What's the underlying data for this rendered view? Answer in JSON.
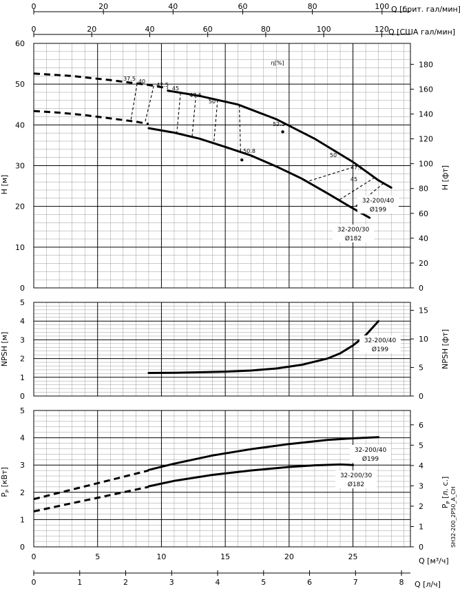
{
  "chart_data": [
    {
      "panel": "head",
      "type": "line",
      "x_axis": {
        "label": "Q [м³/ч]",
        "range": [
          0,
          29.5
        ]
      },
      "y_axis": {
        "label": "H [м]",
        "range": [
          0,
          60
        ],
        "ticks": [
          0,
          10,
          20,
          30,
          40,
          50,
          60
        ]
      },
      "y2_axis": {
        "label": "H [фт]",
        "ticks": [
          0,
          20,
          40,
          60,
          80,
          100,
          120,
          140,
          160,
          180
        ]
      },
      "top_axes": [
        {
          "label": "Q [брит. гал/мин]",
          "ticks": [
            0,
            20,
            40,
            60,
            80,
            100
          ]
        },
        {
          "label": "Q [США гал/мин]",
          "ticks": [
            0,
            20,
            40,
            60,
            80,
            100,
            120
          ]
        }
      ],
      "efficiency_label": "η[%]",
      "series": [
        {
          "name": "32-200/40",
          "sublabel": "Ø199",
          "dashed": [
            [
              0,
              52.6
            ],
            [
              3,
              52
            ],
            [
              6,
              51
            ],
            [
              9,
              49.8
            ],
            [
              10.5,
              49
            ]
          ],
          "solid": [
            [
              10.5,
              48.4
            ],
            [
              13,
              47.1
            ],
            [
              16,
              45
            ],
            [
              19,
              41.4
            ],
            [
              22,
              36.6
            ],
            [
              25,
              30.9
            ],
            [
              27,
              26.4
            ],
            [
              28,
              24.6
            ]
          ]
        },
        {
          "name": "32-200/30",
          "sublabel": "Ø182",
          "dashed": [
            [
              0,
              43.4
            ],
            [
              2,
              43
            ],
            [
              4,
              42.4
            ],
            [
              6,
              41.6
            ],
            [
              8,
              40.8
            ],
            [
              9,
              40.2
            ]
          ],
          "solid": [
            [
              9,
              39.2
            ],
            [
              11,
              38.1
            ],
            [
              13,
              36.6
            ],
            [
              15,
              34.6
            ],
            [
              17,
              32.5
            ],
            [
              19,
              29.8
            ],
            [
              21,
              26.8
            ],
            [
              23,
              23.2
            ],
            [
              25,
              19.5
            ],
            [
              26.3,
              17.2
            ]
          ]
        }
      ],
      "efficiency_lines": [
        {
          "label": "37.5",
          "x": [
            8.1,
            7.6
          ]
        },
        {
          "label": "40",
          "x": [
            9.4,
            8.7
          ]
        },
        {
          "label": "42.5",
          "x": [
            11.5,
            11.2
          ]
        },
        {
          "label": "45",
          "x": [
            12.7,
            12.4
          ]
        },
        {
          "label": "47.5",
          "x": [
            14.4,
            14.1
          ]
        },
        {
          "label": "50",
          "x": [
            16.1,
            16.2
          ]
        }
      ],
      "efficiency_lines_right": [
        {
          "label": "50",
          "x": [
            25.4,
            21.4
          ]
        },
        {
          "label": "47.5",
          "x": [
            26.7,
            23.9
          ]
        },
        {
          "label": "45",
          "x": [
            27.4,
            25
          ]
        }
      ],
      "efficiency_points": [
        {
          "label": "52.5",
          "x": 19.5,
          "y": 38.3
        },
        {
          "label": "50.8",
          "x": 16.3,
          "y": 31.4
        }
      ]
    },
    {
      "panel": "npsh",
      "type": "line",
      "y_axis": {
        "label": "NPSH [м]",
        "range": [
          0,
          5
        ],
        "ticks": [
          0,
          1,
          2,
          3,
          4,
          5
        ]
      },
      "y2_axis": {
        "label": "NPSH [фт]",
        "ticks": [
          0,
          5,
          10,
          15
        ]
      },
      "series": [
        {
          "name": "32-200/40",
          "sublabel": "Ø199",
          "points": [
            [
              9,
              1.23
            ],
            [
              11,
              1.24
            ],
            [
              13,
              1.27
            ],
            [
              15,
              1.3
            ],
            [
              17,
              1.36
            ],
            [
              19,
              1.47
            ],
            [
              21,
              1.67
            ],
            [
              23,
              2.0
            ],
            [
              24,
              2.28
            ],
            [
              25,
              2.7
            ],
            [
              26,
              3.25
            ],
            [
              27,
              4.0
            ]
          ]
        }
      ]
    },
    {
      "panel": "power",
      "type": "line",
      "y_axis": {
        "label": "P_P [кВт]",
        "range": [
          0,
          5
        ],
        "ticks": [
          0,
          1,
          2,
          3,
          4,
          5
        ]
      },
      "y2_axis": {
        "label": "P_P [л. с.]",
        "ticks": [
          0,
          1,
          2,
          3,
          4,
          5,
          6
        ]
      },
      "x_axis": {
        "label": "Q [м³/ч]",
        "ticks": [
          0,
          5,
          10,
          15,
          20,
          25
        ],
        "range": [
          0,
          29.5
        ]
      },
      "x2_axis": {
        "label": "Q [л/ч]",
        "ticks": [
          0,
          1,
          2,
          3,
          4,
          5,
          6,
          7,
          8
        ]
      },
      "series": [
        {
          "name": "32-200/40",
          "sublabel": "Ø199",
          "dashed": [
            [
              0,
              1.75
            ],
            [
              3,
              2.1
            ],
            [
              6,
              2.45
            ],
            [
              9,
              2.8
            ]
          ],
          "solid": [
            [
              9,
              2.82
            ],
            [
              11,
              3.05
            ],
            [
              14,
              3.35
            ],
            [
              17,
              3.58
            ],
            [
              20,
              3.77
            ],
            [
              23,
              3.92
            ],
            [
              25,
              3.98
            ],
            [
              27,
              4.02
            ]
          ]
        },
        {
          "name": "32-200/30",
          "sublabel": "Ø182",
          "dashed": [
            [
              0,
              1.3
            ],
            [
              3,
              1.6
            ],
            [
              6,
              1.9
            ],
            [
              9,
              2.2
            ]
          ],
          "solid": [
            [
              9,
              2.22
            ],
            [
              11,
              2.42
            ],
            [
              14,
              2.64
            ],
            [
              17,
              2.8
            ],
            [
              20,
              2.93
            ],
            [
              22,
              2.99
            ],
            [
              24,
              3.02
            ],
            [
              25,
              3.0
            ]
          ]
        }
      ]
    }
  ],
  "labels": {
    "top1": "Q [брит. гал/мин]",
    "top2": "Q [США гал/мин]",
    "bottom1": "Q [м³/ч]",
    "bottom2": "Q [л/ч]",
    "h_left": "H [м]",
    "h_right": "H [фт]",
    "npsh_left": "NPSH [м]",
    "npsh_right": "NPSH [фт]",
    "p_left": "P",
    "p_left_sub": "P",
    "p_left_unit": " [кВт]",
    "p_right": "P",
    "p_right_sub": "P",
    "p_right_unit": " [л. с.]",
    "eta": "η[%]",
    "code": "SH32-200_2P50_A_CH"
  }
}
